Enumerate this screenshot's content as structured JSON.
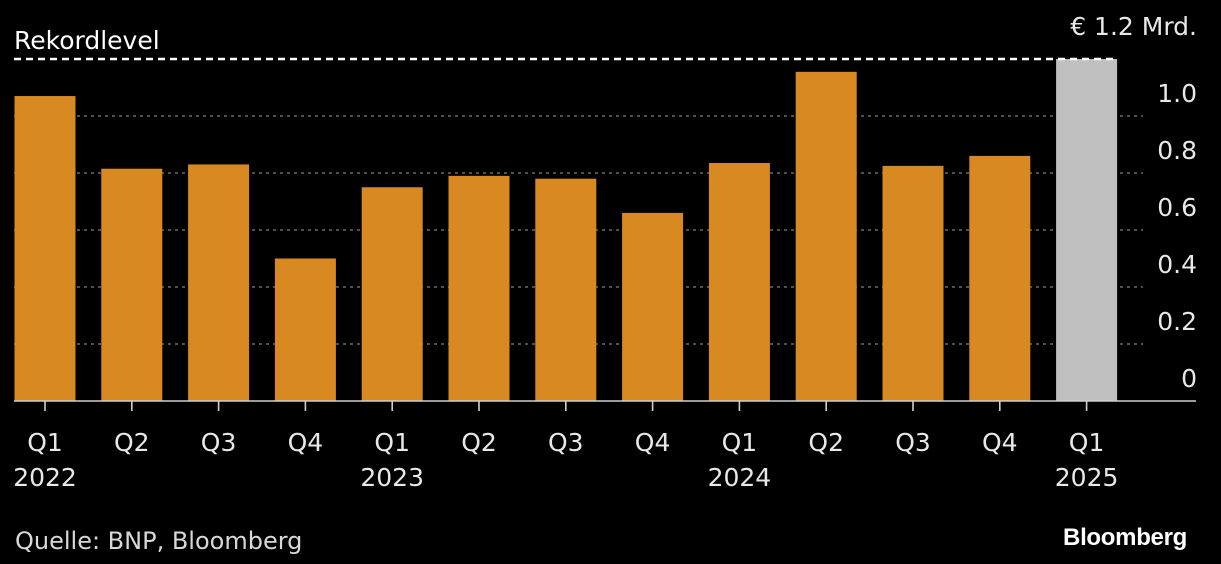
{
  "colors": {
    "bar": "#d98922",
    "highlight_bar": "#c0c0c0",
    "background": "#000000"
  },
  "chart_data": {
    "type": "bar",
    "unit_label": "€ 1.2 Mrd.",
    "reference_line": {
      "label": "Rekordlevel",
      "value": 1.2
    },
    "categories": [
      {
        "quarter": "Q1",
        "year": "2022"
      },
      {
        "quarter": "Q2",
        "year": ""
      },
      {
        "quarter": "Q3",
        "year": ""
      },
      {
        "quarter": "Q4",
        "year": ""
      },
      {
        "quarter": "Q1",
        "year": "2023"
      },
      {
        "quarter": "Q2",
        "year": ""
      },
      {
        "quarter": "Q3",
        "year": ""
      },
      {
        "quarter": "Q4",
        "year": ""
      },
      {
        "quarter": "Q1",
        "year": "2024"
      },
      {
        "quarter": "Q2",
        "year": ""
      },
      {
        "quarter": "Q3",
        "year": ""
      },
      {
        "quarter": "Q4",
        "year": ""
      },
      {
        "quarter": "Q1",
        "year": "2025"
      }
    ],
    "values": [
      1.07,
      0.815,
      0.83,
      0.5,
      0.75,
      0.79,
      0.78,
      0.66,
      0.835,
      1.155,
      0.825,
      0.86,
      1.2
    ],
    "highlight_index": 12,
    "y_ticks": [
      "0",
      "0.2",
      "0.4",
      "0.6",
      "0.8",
      "1.0"
    ],
    "y_tick_values": [
      0,
      0.2,
      0.4,
      0.6,
      0.8,
      1.0
    ],
    "ylim": [
      0,
      1.2
    ],
    "grid": true
  },
  "footer": {
    "source": "Quelle: BNP, Bloomberg",
    "brand": "Bloomberg"
  }
}
